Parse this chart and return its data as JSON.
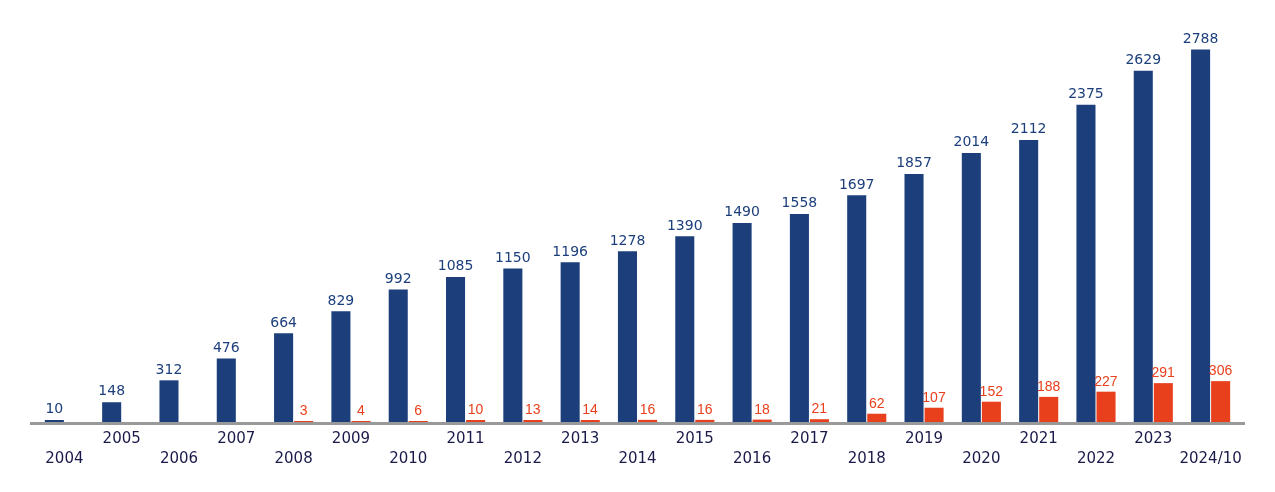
{
  "chart_data": {
    "type": "bar",
    "categories": [
      "2004",
      "2005",
      "2006",
      "2007",
      "2008",
      "2009",
      "2010",
      "2011",
      "2012",
      "2013",
      "2014",
      "2015",
      "2016",
      "2017",
      "2018",
      "2019",
      "2020",
      "2021",
      "2022",
      "2023",
      "2024/10"
    ],
    "series": [
      {
        "color": "#1c3f7c",
        "values": [
          10,
          148,
          312,
          476,
          664,
          829,
          992,
          1085,
          1150,
          1196,
          1278,
          1390,
          1490,
          1558,
          1697,
          1857,
          2014,
          2112,
          2375,
          2629,
          2788
        ]
      },
      {
        "color": "#e8401c",
        "values": [
          null,
          null,
          null,
          null,
          3,
          4,
          6,
          10,
          13,
          14,
          16,
          16,
          18,
          21,
          62,
          107,
          152,
          188,
          227,
          291,
          306
        ]
      }
    ],
    "data_labels": true
  }
}
